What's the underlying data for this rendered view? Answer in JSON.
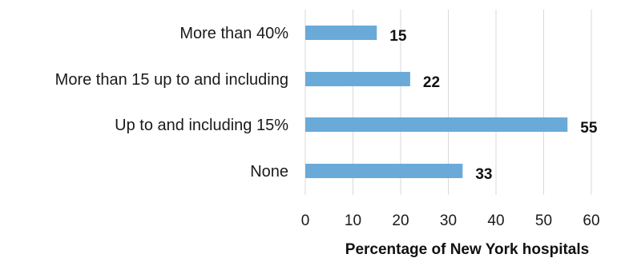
{
  "chart_data": {
    "type": "bar",
    "orientation": "horizontal",
    "categories": [
      "More than 40%",
      "More than 15 up to and including",
      "Up to and including 15%",
      "None"
    ],
    "values": [
      15,
      22,
      55,
      33
    ],
    "xlabel": "Percentage of New York hospitals",
    "xlim": [
      0,
      60
    ],
    "xticks": [
      0,
      10,
      20,
      30,
      40,
      50,
      60
    ],
    "grid": "vertical",
    "bar_color": "#6aaad9",
    "data_labels": true
  }
}
